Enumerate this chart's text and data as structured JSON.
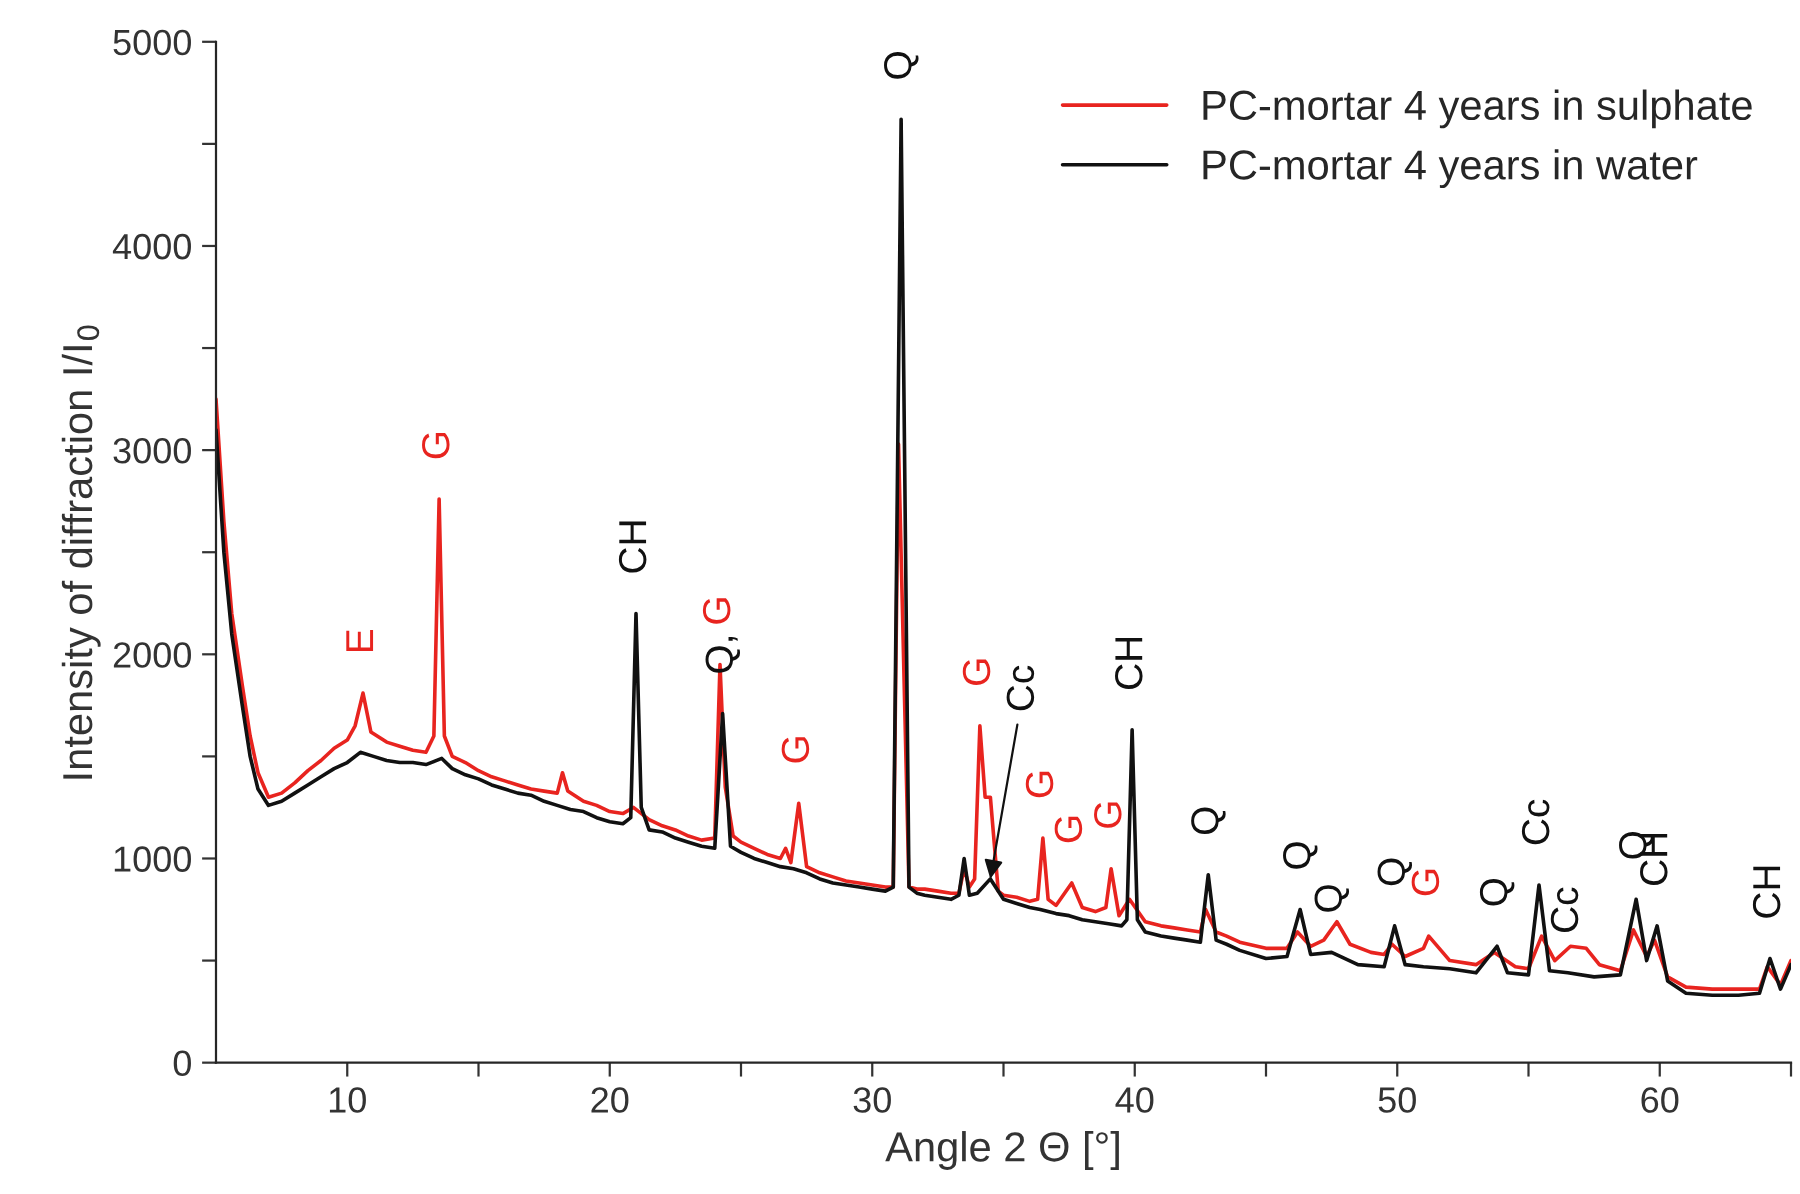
{
  "chart_data": {
    "type": "line",
    "xlabel": "Angle 2 Θ [°]",
    "ylabel": "Intensity of diffraction I/I$_{0}$",
    "xlim": [
      5,
      65
    ],
    "ylim": [
      0,
      5000
    ],
    "xticks": [
      10,
      {
        "value": 15,
        "label": null
      },
      20,
      {
        "value": 25,
        "label": null
      },
      30,
      {
        "value": 35,
        "label": null
      },
      40,
      {
        "value": 45,
        "label": null
      },
      50,
      {
        "value": 55,
        "label": null
      },
      60,
      {
        "value": 65,
        "label": null
      }
    ],
    "yticks": [
      0,
      {
        "value": 500,
        "label": null
      },
      1000,
      {
        "value": 1500,
        "label": null
      },
      2000,
      {
        "value": 2500,
        "label": null
      },
      3000,
      {
        "value": 3500,
        "label": null
      },
      4000,
      {
        "value": 4500,
        "label": null
      },
      5000
    ],
    "grid": false,
    "legend": "top right",
    "series": [
      {
        "name": "PC-mortar 4 years in sulphate",
        "color": "#e8241f",
        "x": [
          5,
          5.3,
          5.6,
          6.0,
          6.3,
          6.6,
          7.0,
          7.5,
          8,
          8.5,
          9,
          9.5,
          10,
          10.3,
          10.6,
          10.9,
          11.5,
          12,
          12.5,
          13,
          13.3,
          13.5,
          13.7,
          14,
          14.5,
          15,
          15.5,
          16,
          16.5,
          17,
          17.5,
          18,
          18.2,
          18.4,
          19,
          19.5,
          20,
          20.5,
          20.9,
          21.5,
          22,
          22.5,
          23,
          23.5,
          24.0,
          24.2,
          24.4,
          24.7,
          25,
          25.5,
          26,
          26.5,
          26.7,
          26.9,
          27.2,
          27.5,
          28,
          28.5,
          29,
          29.5,
          30,
          30.5,
          30.8,
          31.0,
          31.4,
          31.7,
          32,
          32.5,
          33,
          33.3,
          33.5,
          33.7,
          33.9,
          34.1,
          34.3,
          34.5,
          34.8,
          35,
          35.5,
          36,
          36.3,
          36.5,
          36.7,
          37,
          37.6,
          38,
          38.5,
          38.9,
          39.1,
          39.4,
          39.8,
          40.4,
          41,
          41.5,
          42,
          42.5,
          42.7,
          43.1,
          43.5,
          44,
          45,
          45.8,
          46.2,
          46.7,
          47.2,
          47.7,
          48.2,
          49,
          49.5,
          49.8,
          50.3,
          51,
          51.2,
          51.6,
          52,
          53,
          53.7,
          54.5,
          55,
          55.5,
          56,
          56.6,
          57.2,
          57.7,
          58.5,
          59.0,
          59.5,
          59.8,
          60.3,
          61,
          62,
          63,
          63.8,
          64.1,
          64.6,
          65
        ],
        "values": [
          3250,
          2650,
          2200,
          1850,
          1600,
          1420,
          1300,
          1320,
          1370,
          1430,
          1480,
          1540,
          1580,
          1650,
          1810,
          1620,
          1570,
          1550,
          1530,
          1520,
          1600,
          2760,
          1600,
          1500,
          1470,
          1430,
          1400,
          1380,
          1360,
          1340,
          1330,
          1320,
          1420,
          1330,
          1280,
          1260,
          1230,
          1220,
          1250,
          1190,
          1160,
          1140,
          1110,
          1090,
          1100,
          1950,
          1350,
          1110,
          1080,
          1050,
          1020,
          1000,
          1050,
          980,
          1270,
          960,
          930,
          910,
          890,
          880,
          870,
          860,
          860,
          3030,
          860,
          850,
          850,
          840,
          830,
          830,
          950,
          860,
          900,
          1650,
          1300,
          1300,
          840,
          820,
          810,
          790,
          800,
          1100,
          800,
          770,
          880,
          760,
          740,
          760,
          950,
          720,
          800,
          690,
          670,
          660,
          650,
          640,
          750,
          640,
          620,
          590,
          560,
          560,
          640,
          570,
          600,
          690,
          580,
          540,
          530,
          580,
          520,
          560,
          620,
          560,
          500,
          480,
          540,
          470,
          460,
          620,
          500,
          570,
          560,
          480,
          450,
          650,
          520,
          600,
          420,
          370,
          360,
          360,
          360,
          470,
          380,
          500
        ]
      },
      {
        "name": "PC-mortar 4 years in water",
        "color": "#111111",
        "x": [
          5,
          5.3,
          5.6,
          6.0,
          6.3,
          6.6,
          7.0,
          7.5,
          8,
          8.5,
          9,
          9.5,
          10,
          10.5,
          11,
          11.5,
          12,
          12.5,
          13,
          13.6,
          14,
          14.5,
          15,
          15.5,
          16,
          16.5,
          17,
          17.5,
          18,
          18.5,
          19,
          19.5,
          20,
          20.5,
          20.8,
          21.0,
          21.2,
          21.5,
          22,
          22.5,
          23,
          23.5,
          24.0,
          24.3,
          24.6,
          25,
          25.5,
          26,
          26.5,
          27,
          27.5,
          28,
          28.5,
          29,
          29.5,
          30,
          30.5,
          30.8,
          31.1,
          31.4,
          31.7,
          32,
          32.5,
          33,
          33.3,
          33.5,
          33.7,
          34,
          34.5,
          35,
          35.5,
          36,
          36.4,
          37,
          37.5,
          38,
          38.5,
          39,
          39.5,
          39.7,
          39.9,
          40.1,
          40.4,
          41,
          41.5,
          42,
          42.5,
          42.8,
          43.1,
          43.5,
          44,
          45,
          45.8,
          46.3,
          46.7,
          47.5,
          48.5,
          49.5,
          49.9,
          50.3,
          51,
          52,
          53,
          53.8,
          54.2,
          55,
          55.4,
          55.8,
          56.5,
          57.5,
          58.5,
          59.1,
          59.5,
          59.9,
          60.3,
          61,
          62,
          63,
          63.8,
          64.2,
          64.6,
          65
        ],
        "values": [
          3100,
          2500,
          2100,
          1750,
          1500,
          1340,
          1260,
          1280,
          1320,
          1360,
          1400,
          1440,
          1470,
          1520,
          1500,
          1480,
          1470,
          1470,
          1460,
          1490,
          1440,
          1410,
          1390,
          1360,
          1340,
          1320,
          1310,
          1280,
          1260,
          1240,
          1230,
          1200,
          1180,
          1170,
          1200,
          2200,
          1250,
          1140,
          1130,
          1100,
          1080,
          1060,
          1050,
          1710,
          1060,
          1030,
          1000,
          980,
          960,
          950,
          930,
          900,
          880,
          870,
          860,
          850,
          840,
          860,
          4620,
          860,
          830,
          820,
          810,
          800,
          820,
          1000,
          820,
          830,
          900,
          800,
          780,
          760,
          750,
          730,
          720,
          700,
          690,
          680,
          670,
          700,
          1630,
          700,
          640,
          620,
          610,
          600,
          590,
          920,
          600,
          580,
          550,
          510,
          520,
          750,
          530,
          540,
          480,
          470,
          670,
          480,
          470,
          460,
          440,
          570,
          440,
          430,
          870,
          450,
          440,
          420,
          430,
          800,
          500,
          670,
          400,
          340,
          330,
          330,
          340,
          510,
          360,
          480
        ]
      }
    ],
    "annotations": [
      {
        "text": "E",
        "x": 10.6,
        "y": 1810
      },
      {
        "text": "G",
        "x": 13.5,
        "y": 2760
      },
      {
        "text": "CH",
        "x": 21.0,
        "y": 2200
      },
      {
        "text": "Q,",
        "x": 24.3,
        "y": 1710
      },
      {
        "text": "G",
        "x": 24.2,
        "y": 1950
      },
      {
        "text": "G",
        "x": 27.2,
        "y": 1270
      },
      {
        "text": "Q",
        "x": 31.1,
        "y": 4620
      },
      {
        "text": "G",
        "x": 34.1,
        "y": 1650
      },
      {
        "text": "Cc",
        "x": 34.5,
        "y": 900
      },
      {
        "text": "G",
        "x": 36.5,
        "y": 1100
      },
      {
        "text": "G",
        "x": 37.6,
        "y": 880
      },
      {
        "text": "G",
        "x": 39.1,
        "y": 950
      },
      {
        "text": "CH",
        "x": 39.9,
        "y": 1630
      },
      {
        "text": "Q",
        "x": 42.8,
        "y": 920
      },
      {
        "text": "Q",
        "x": 46.3,
        "y": 750
      },
      {
        "text": "Q",
        "x": 47.5,
        "y": 540
      },
      {
        "text": "Q",
        "x": 49.9,
        "y": 670
      },
      {
        "text": "G",
        "x": 51.2,
        "y": 620
      },
      {
        "text": "Q",
        "x": 53.8,
        "y": 570
      },
      {
        "text": "Cc",
        "x": 55.4,
        "y": 870
      },
      {
        "text": "Cc",
        "x": 56.5,
        "y": 440
      },
      {
        "text": "Q",
        "x": 59.1,
        "y": 800
      },
      {
        "text": "CH",
        "x": 59.9,
        "y": 670
      },
      {
        "text": "CH",
        "x": 64.2,
        "y": 510
      }
    ]
  }
}
